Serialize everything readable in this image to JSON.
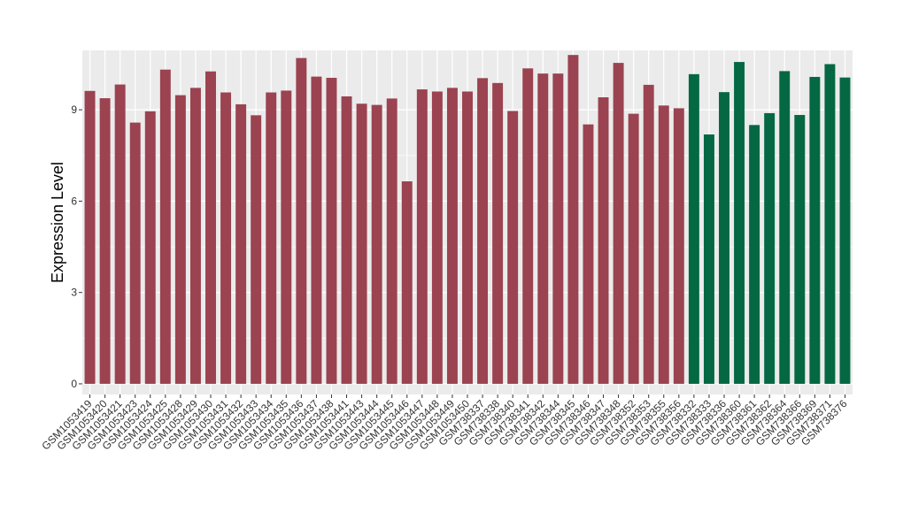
{
  "chart_data": {
    "type": "bar",
    "title": "",
    "xlabel": "",
    "ylabel": "Expression Level",
    "ylim": [
      -0.35,
      10.95
    ],
    "yticks": [
      0,
      3,
      6,
      9
    ],
    "grid": true,
    "legend": "none",
    "panel_background": "#ebebeb",
    "grid_color": "#ffffff",
    "categories": [
      "GSM1053419",
      "GSM1053420",
      "GSM1053421",
      "GSM1053423",
      "GSM1053424",
      "GSM1053425",
      "GSM1053428",
      "GSM1053429",
      "GSM1053430",
      "GSM1053431",
      "GSM1053432",
      "GSM1053433",
      "GSM1053434",
      "GSM1053435",
      "GSM1053436",
      "GSM1053437",
      "GSM1053438",
      "GSM1053441",
      "GSM1053443",
      "GSM1053444",
      "GSM1053445",
      "GSM1053446",
      "GSM1053447",
      "GSM1053448",
      "GSM1053449",
      "GSM1053450",
      "GSM738337",
      "GSM738338",
      "GSM738340",
      "GSM738341",
      "GSM738342",
      "GSM738344",
      "GSM738345",
      "GSM738346",
      "GSM738347",
      "GSM738348",
      "GSM738352",
      "GSM738353",
      "GSM738355",
      "GSM738356",
      "GSM738332",
      "GSM738333",
      "GSM738336",
      "GSM738360",
      "GSM738361",
      "GSM738362",
      "GSM738364",
      "GSM738366",
      "GSM738369",
      "GSM738371",
      "GSM738376"
    ],
    "values": [
      9.62,
      9.38,
      9.83,
      8.58,
      8.95,
      10.32,
      9.48,
      9.72,
      10.26,
      9.57,
      9.18,
      8.82,
      9.57,
      9.63,
      10.7,
      10.09,
      10.05,
      9.44,
      9.2,
      9.16,
      9.37,
      6.65,
      9.67,
      9.6,
      9.72,
      9.6,
      10.04,
      9.88,
      8.96,
      10.36,
      10.19,
      10.19,
      10.8,
      8.52,
      9.41,
      10.54,
      8.87,
      9.82,
      9.14,
      9.05,
      10.17,
      8.19,
      9.58,
      10.57,
      8.5,
      8.89,
      10.27,
      8.83,
      10.08,
      10.5,
      10.06
    ],
    "group_colors": [
      "#9b4350",
      "#046843"
    ],
    "groups": [
      0,
      0,
      0,
      0,
      0,
      0,
      0,
      0,
      0,
      0,
      0,
      0,
      0,
      0,
      0,
      0,
      0,
      0,
      0,
      0,
      0,
      0,
      0,
      0,
      0,
      0,
      0,
      0,
      0,
      0,
      0,
      0,
      0,
      0,
      0,
      0,
      0,
      0,
      0,
      0,
      1,
      1,
      1,
      1,
      1,
      1,
      1,
      1,
      1,
      1,
      1
    ]
  }
}
